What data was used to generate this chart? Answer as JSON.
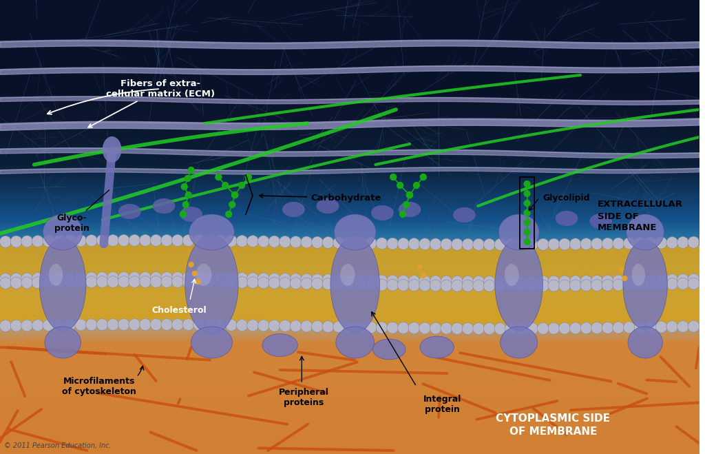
{
  "fig_width": 10.24,
  "fig_height": 6.59,
  "dpi": 100,
  "labels": {
    "ecm": "Fibers of extra-\ncellular matrix (ECM)",
    "glycoprotein": "Glyco-\nprotein",
    "carbohydrate": "Carbohydrate",
    "glycolipid": "Glycolipid",
    "cholesterol": "Cholesterol",
    "microfilaments": "Microfilaments\nof cytoskeleton",
    "peripheral": "Peripheral\nproteins",
    "integral": "Integral\nprotein",
    "extracellular": "EXTRACELLULAR\nSIDE OF\nMEMBRANE",
    "cytoplasmic": "CYTOPLASMIC SIDE\nOF MEMBRANE",
    "copyright": "© 2011 Pearson Education, Inc."
  },
  "ecm_color": "#9898c8",
  "green_fiber_color": "#22cc22",
  "head_color": "#b8b8c8",
  "lipid_tail_color": "#d4a020",
  "protein_color": "#7878b8",
  "carb_color": "#18a818",
  "chol_color": "#e0a030",
  "cyt_color": "#c85010",
  "filament_color": "#507090"
}
